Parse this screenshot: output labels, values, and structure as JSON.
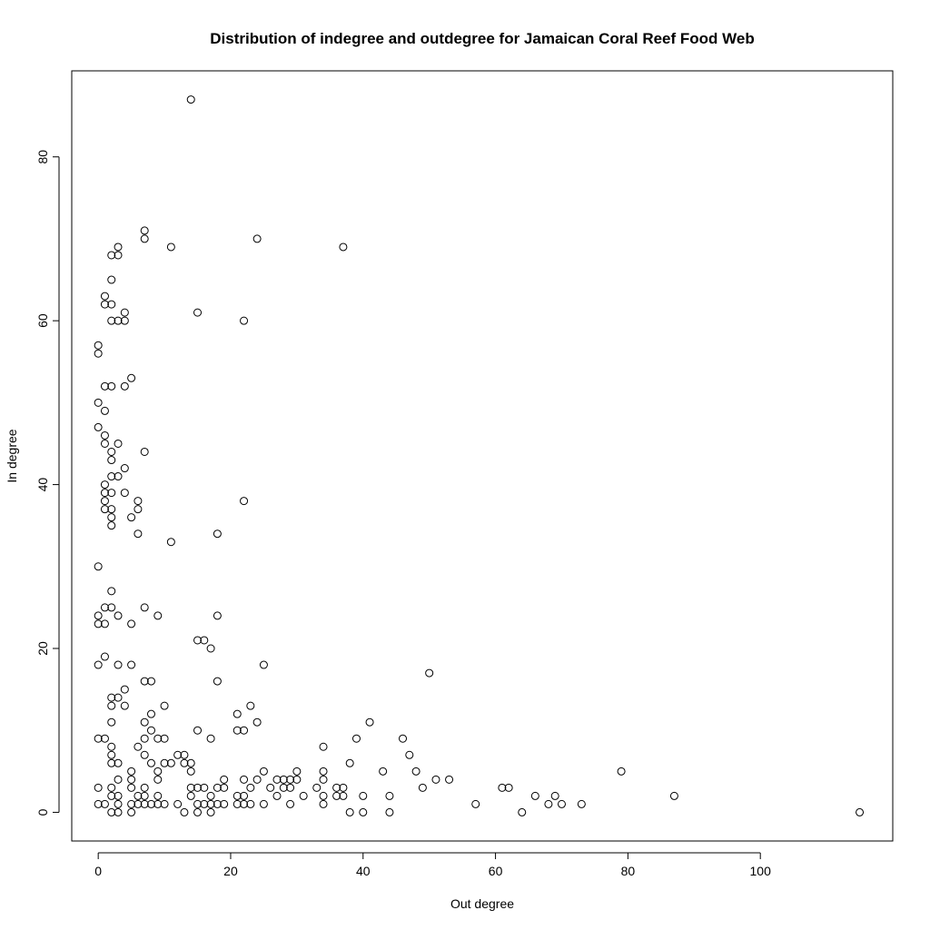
{
  "chart_data": {
    "type": "scatter",
    "title": "Distribution of indegree and outdegree for Jamaican Coral Reef Food Web",
    "xlabel": "Out degree",
    "ylabel": "In degree",
    "xlim": [
      -4,
      120
    ],
    "ylim": [
      -3.5,
      90.5
    ],
    "xticks": [
      0,
      20,
      40,
      60,
      80,
      100
    ],
    "yticks": [
      0,
      20,
      40,
      60,
      80
    ],
    "grid": false,
    "legend": "none",
    "points": [
      [
        14,
        87
      ],
      [
        7,
        71
      ],
      [
        7,
        70
      ],
      [
        11,
        69
      ],
      [
        24,
        70
      ],
      [
        37,
        69
      ],
      [
        3,
        69
      ],
      [
        2,
        68
      ],
      [
        3,
        68
      ],
      [
        2,
        65
      ],
      [
        1,
        63
      ],
      [
        1,
        62
      ],
      [
        2,
        62
      ],
      [
        4,
        61
      ],
      [
        15,
        61
      ],
      [
        2,
        60
      ],
      [
        3,
        60
      ],
      [
        4,
        60
      ],
      [
        22,
        60
      ],
      [
        0,
        57
      ],
      [
        0,
        56
      ],
      [
        5,
        53
      ],
      [
        1,
        52
      ],
      [
        2,
        52
      ],
      [
        4,
        52
      ],
      [
        0,
        50
      ],
      [
        1,
        49
      ],
      [
        0,
        47
      ],
      [
        1,
        46
      ],
      [
        1,
        45
      ],
      [
        3,
        45
      ],
      [
        2,
        44
      ],
      [
        7,
        44
      ],
      [
        2,
        43
      ],
      [
        4,
        42
      ],
      [
        2,
        41
      ],
      [
        3,
        41
      ],
      [
        1,
        40
      ],
      [
        1,
        39
      ],
      [
        2,
        39
      ],
      [
        4,
        39
      ],
      [
        1,
        38
      ],
      [
        6,
        38
      ],
      [
        22,
        38
      ],
      [
        1,
        37
      ],
      [
        2,
        37
      ],
      [
        6,
        37
      ],
      [
        2,
        36
      ],
      [
        5,
        36
      ],
      [
        2,
        35
      ],
      [
        6,
        34
      ],
      [
        18,
        34
      ],
      [
        11,
        33
      ],
      [
        0,
        30
      ],
      [
        2,
        27
      ],
      [
        1,
        25
      ],
      [
        2,
        25
      ],
      [
        7,
        25
      ],
      [
        0,
        24
      ],
      [
        3,
        24
      ],
      [
        9,
        24
      ],
      [
        18,
        24
      ],
      [
        0,
        23
      ],
      [
        1,
        23
      ],
      [
        5,
        23
      ],
      [
        15,
        21
      ],
      [
        16,
        21
      ],
      [
        17,
        20
      ],
      [
        1,
        19
      ],
      [
        0,
        18
      ],
      [
        3,
        18
      ],
      [
        5,
        18
      ],
      [
        25,
        18
      ],
      [
        50,
        17
      ],
      [
        7,
        16
      ],
      [
        8,
        16
      ],
      [
        18,
        16
      ],
      [
        4,
        15
      ],
      [
        2,
        14
      ],
      [
        3,
        14
      ],
      [
        2,
        13
      ],
      [
        4,
        13
      ],
      [
        10,
        13
      ],
      [
        23,
        13
      ],
      [
        8,
        12
      ],
      [
        21,
        12
      ],
      [
        2,
        11
      ],
      [
        7,
        11
      ],
      [
        24,
        11
      ],
      [
        41,
        11
      ],
      [
        8,
        10
      ],
      [
        15,
        10
      ],
      [
        21,
        10
      ],
      [
        22,
        10
      ],
      [
        0,
        9
      ],
      [
        1,
        9
      ],
      [
        7,
        9
      ],
      [
        9,
        9
      ],
      [
        10,
        9
      ],
      [
        17,
        9
      ],
      [
        39,
        9
      ],
      [
        46,
        9
      ],
      [
        2,
        8
      ],
      [
        6,
        8
      ],
      [
        34,
        8
      ],
      [
        2,
        7
      ],
      [
        7,
        7
      ],
      [
        12,
        7
      ],
      [
        13,
        7
      ],
      [
        47,
        7
      ],
      [
        2,
        6
      ],
      [
        3,
        6
      ],
      [
        8,
        6
      ],
      [
        10,
        6
      ],
      [
        11,
        6
      ],
      [
        13,
        6
      ],
      [
        14,
        6
      ],
      [
        38,
        6
      ],
      [
        5,
        5
      ],
      [
        9,
        5
      ],
      [
        14,
        5
      ],
      [
        25,
        5
      ],
      [
        30,
        5
      ],
      [
        34,
        5
      ],
      [
        43,
        5
      ],
      [
        48,
        5
      ],
      [
        79,
        5
      ],
      [
        3,
        4
      ],
      [
        5,
        4
      ],
      [
        9,
        4
      ],
      [
        19,
        4
      ],
      [
        22,
        4
      ],
      [
        24,
        4
      ],
      [
        27,
        4
      ],
      [
        28,
        4
      ],
      [
        29,
        4
      ],
      [
        30,
        4
      ],
      [
        34,
        4
      ],
      [
        51,
        4
      ],
      [
        53,
        4
      ],
      [
        0,
        3
      ],
      [
        2,
        3
      ],
      [
        5,
        3
      ],
      [
        7,
        3
      ],
      [
        14,
        3
      ],
      [
        15,
        3
      ],
      [
        16,
        3
      ],
      [
        18,
        3
      ],
      [
        19,
        3
      ],
      [
        23,
        3
      ],
      [
        26,
        3
      ],
      [
        28,
        3
      ],
      [
        29,
        3
      ],
      [
        33,
        3
      ],
      [
        36,
        3
      ],
      [
        37,
        3
      ],
      [
        49,
        3
      ],
      [
        61,
        3
      ],
      [
        62,
        3
      ],
      [
        2,
        2
      ],
      [
        3,
        2
      ],
      [
        6,
        2
      ],
      [
        7,
        2
      ],
      [
        9,
        2
      ],
      [
        14,
        2
      ],
      [
        17,
        2
      ],
      [
        21,
        2
      ],
      [
        22,
        2
      ],
      [
        27,
        2
      ],
      [
        31,
        2
      ],
      [
        34,
        2
      ],
      [
        36,
        2
      ],
      [
        37,
        2
      ],
      [
        40,
        2
      ],
      [
        44,
        2
      ],
      [
        66,
        2
      ],
      [
        69,
        2
      ],
      [
        87,
        2
      ],
      [
        0,
        1
      ],
      [
        1,
        1
      ],
      [
        3,
        1
      ],
      [
        5,
        1
      ],
      [
        6,
        1
      ],
      [
        7,
        1
      ],
      [
        8,
        1
      ],
      [
        9,
        1
      ],
      [
        10,
        1
      ],
      [
        12,
        1
      ],
      [
        15,
        1
      ],
      [
        16,
        1
      ],
      [
        17,
        1
      ],
      [
        18,
        1
      ],
      [
        19,
        1
      ],
      [
        21,
        1
      ],
      [
        22,
        1
      ],
      [
        23,
        1
      ],
      [
        25,
        1
      ],
      [
        29,
        1
      ],
      [
        34,
        1
      ],
      [
        57,
        1
      ],
      [
        68,
        1
      ],
      [
        70,
        1
      ],
      [
        73,
        1
      ],
      [
        2,
        0
      ],
      [
        3,
        0
      ],
      [
        5,
        0
      ],
      [
        13,
        0
      ],
      [
        15,
        0
      ],
      [
        17,
        0
      ],
      [
        38,
        0
      ],
      [
        40,
        0
      ],
      [
        44,
        0
      ],
      [
        64,
        0
      ],
      [
        115,
        0
      ]
    ]
  }
}
